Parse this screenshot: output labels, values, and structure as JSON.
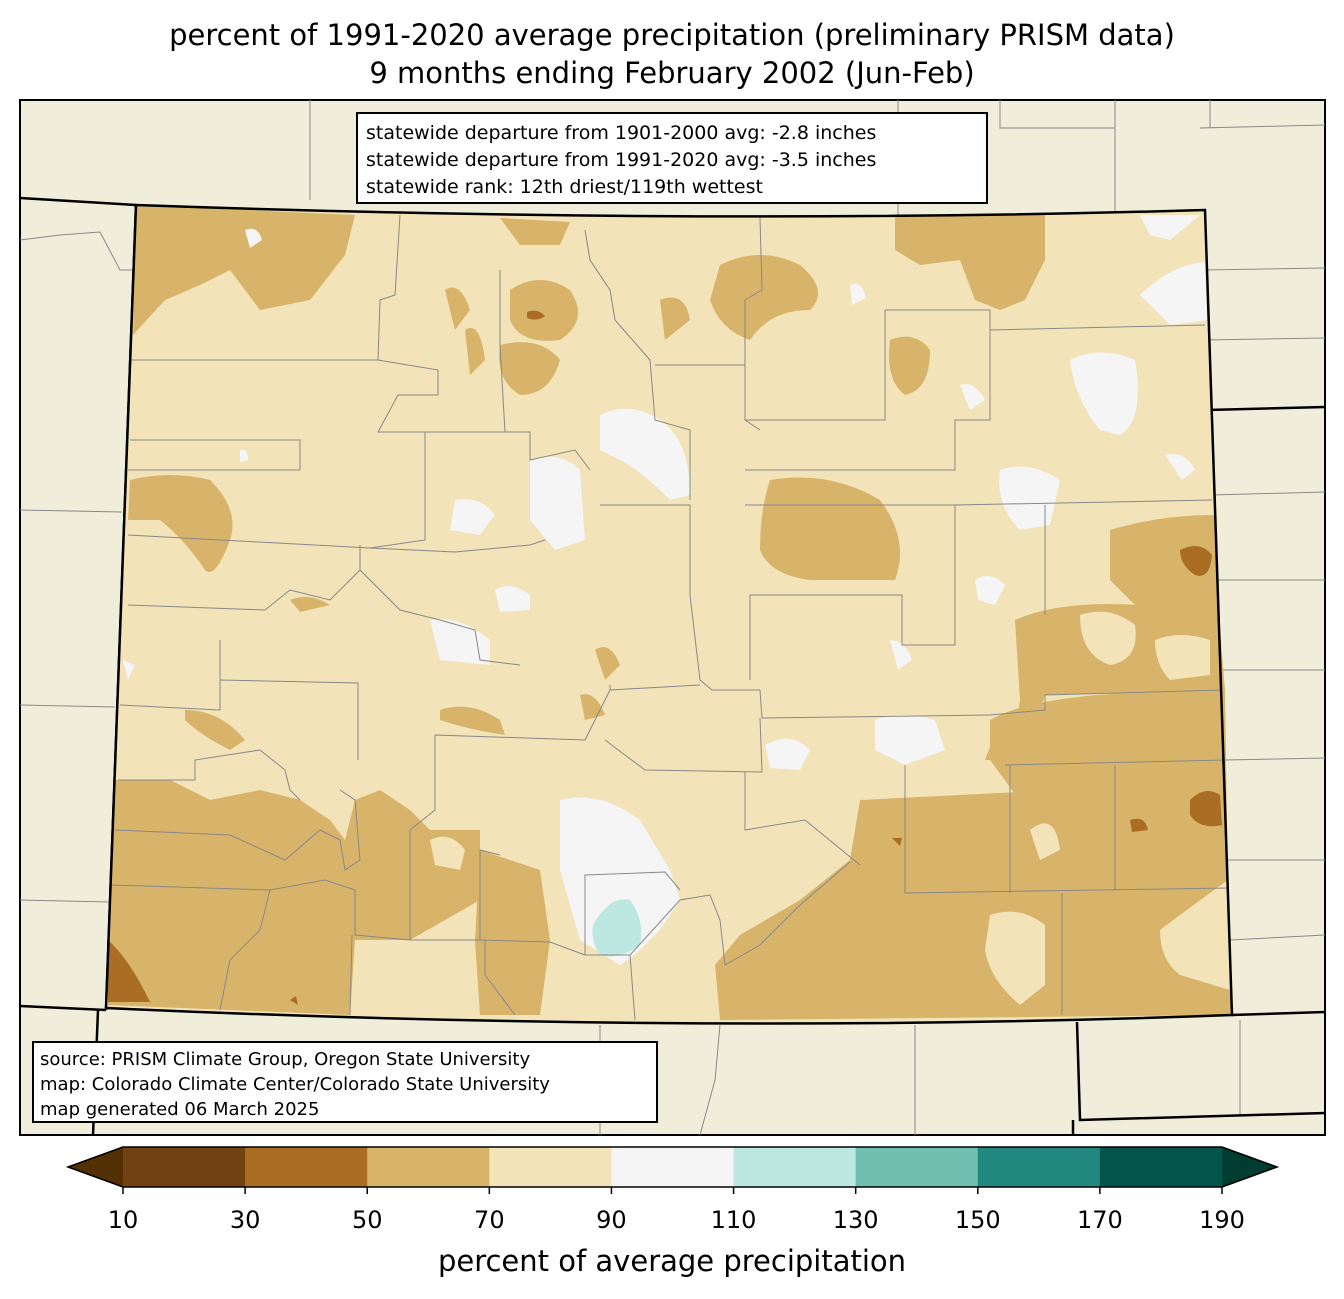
{
  "title": {
    "line1": "percent of 1991-2020 average precipitation (preliminary PRISM data)",
    "line2": "9 months ending February 2002 (Jun-Feb)"
  },
  "stats": {
    "line1": "statewide departure from 1901-2000 avg: -2.8 inches",
    "line2": "statewide departure from 1991-2020 avg: -3.5 inches",
    "line3": "statewide rank: 12th driest/119th wettest"
  },
  "source": {
    "line1": "source: PRISM Climate Group, Oregon State University",
    "line2": "map: Colorado Climate Center/Colorado State University",
    "line3": "map generated 06 March 2025"
  },
  "colorbar": {
    "label": "percent of average precipitation",
    "ticks": [
      "10",
      "30",
      "50",
      "70",
      "90",
      "110",
      "130",
      "150",
      "170",
      "190"
    ],
    "colors": [
      "#734212",
      "#a96e24",
      "#d8b46b",
      "#f3e3b9",
      "#f4f5f4",
      "#bde8e2",
      "#70c0b2",
      "#22887f",
      "#03544a"
    ],
    "under_color": "#543005",
    "over_color": "#003c30"
  },
  "map_colors": {
    "background": "#f0eedb",
    "state_fill": "#f3e3b9"
  }
}
